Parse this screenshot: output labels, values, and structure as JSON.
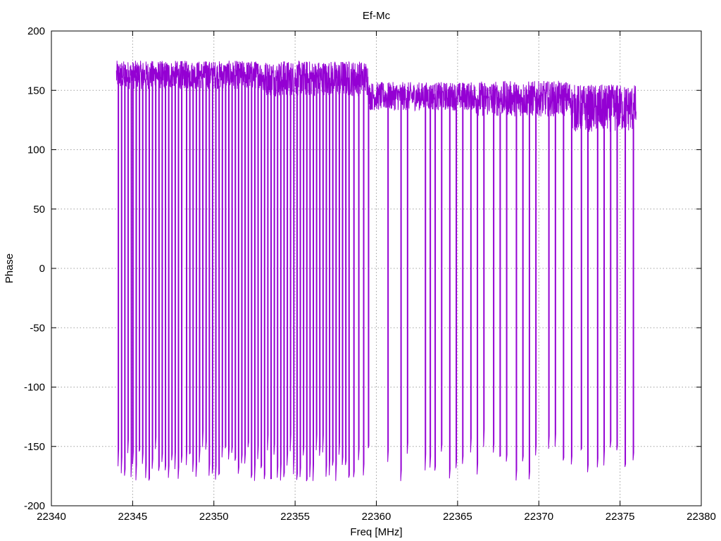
{
  "chart_data": {
    "type": "line",
    "title": "Ef-Mc",
    "xlabel": "Freq [MHz]",
    "ylabel": "Phase",
    "xlim": [
      22340,
      22380
    ],
    "ylim": [
      -200,
      200
    ],
    "x_ticks": [
      22340,
      22345,
      22350,
      22355,
      22360,
      22365,
      22370,
      22375,
      22380
    ],
    "y_ticks": [
      -200,
      -150,
      -100,
      -50,
      0,
      50,
      100,
      150,
      200
    ],
    "x_tick_labels": [
      "22340",
      "22345",
      "22350",
      "22355",
      "22360",
      "22365",
      "22370",
      "22375",
      "22380"
    ],
    "y_tick_labels": [
      "-200",
      "-150",
      "-100",
      "-50",
      "0",
      "50",
      "100",
      "150",
      "200"
    ],
    "grid": true,
    "line_color": "#9400D3",
    "series": [
      {
        "x_start": 22344.0,
        "x_end": 22376.0,
        "x_step": 0.0125,
        "segments": [
          {
            "from": 22344.0,
            "to": 22353.0,
            "mean": 163,
            "noise": 12
          },
          {
            "from": 22353.0,
            "to": 22359.5,
            "mean": 160,
            "noise": 15
          },
          {
            "from": 22359.5,
            "to": 22366.0,
            "mean": 145,
            "noise": 12
          },
          {
            "from": 22366.0,
            "to": 22372.0,
            "mean": 143,
            "noise": 15
          },
          {
            "from": 22372.0,
            "to": 22376.0,
            "mean": 135,
            "noise": 20
          }
        ],
        "wraps": [
          22344.1,
          22344.3,
          22344.5,
          22344.7,
          22344.9,
          22345.0,
          22345.2,
          22345.4,
          22345.6,
          22345.8,
          22346.0,
          22346.2,
          22346.4,
          22346.6,
          22346.8,
          22347.0,
          22347.2,
          22347.4,
          22347.6,
          22347.8,
          22348.0,
          22348.3,
          22348.5,
          22348.7,
          22348.9,
          22349.1,
          22349.3,
          22349.5,
          22349.7,
          22349.9,
          22350.1,
          22350.3,
          22350.5,
          22350.7,
          22350.9,
          22351.1,
          22351.3,
          22351.5,
          22351.7,
          22351.9,
          22352.1,
          22352.3,
          22352.5,
          22352.7,
          22352.9,
          22353.1,
          22353.3,
          22353.5,
          22353.7,
          22353.9,
          22354.1,
          22354.3,
          22354.5,
          22354.7,
          22354.9,
          22355.1,
          22355.3,
          22355.5,
          22355.7,
          22355.9,
          22356.1,
          22356.3,
          22356.5,
          22356.7,
          22356.9,
          22357.1,
          22357.3,
          22357.5,
          22357.7,
          22357.9,
          22358.1,
          22358.3,
          22358.6,
          22358.9,
          22359.2,
          22359.5,
          22360.7,
          22361.5,
          22361.9,
          22363.0,
          22363.3,
          22363.6,
          22364.0,
          22364.5,
          22364.9,
          22365.3,
          22365.8,
          22366.2,
          22366.6,
          22367.2,
          22367.6,
          22368.0,
          22368.6,
          22369.0,
          22369.4,
          22369.8,
          22370.6,
          22371.0,
          22371.5,
          22372.0,
          22372.6,
          22373.0,
          22373.6,
          22374.0,
          22374.4,
          22374.8,
          22375.3,
          22375.8
        ]
      }
    ]
  }
}
